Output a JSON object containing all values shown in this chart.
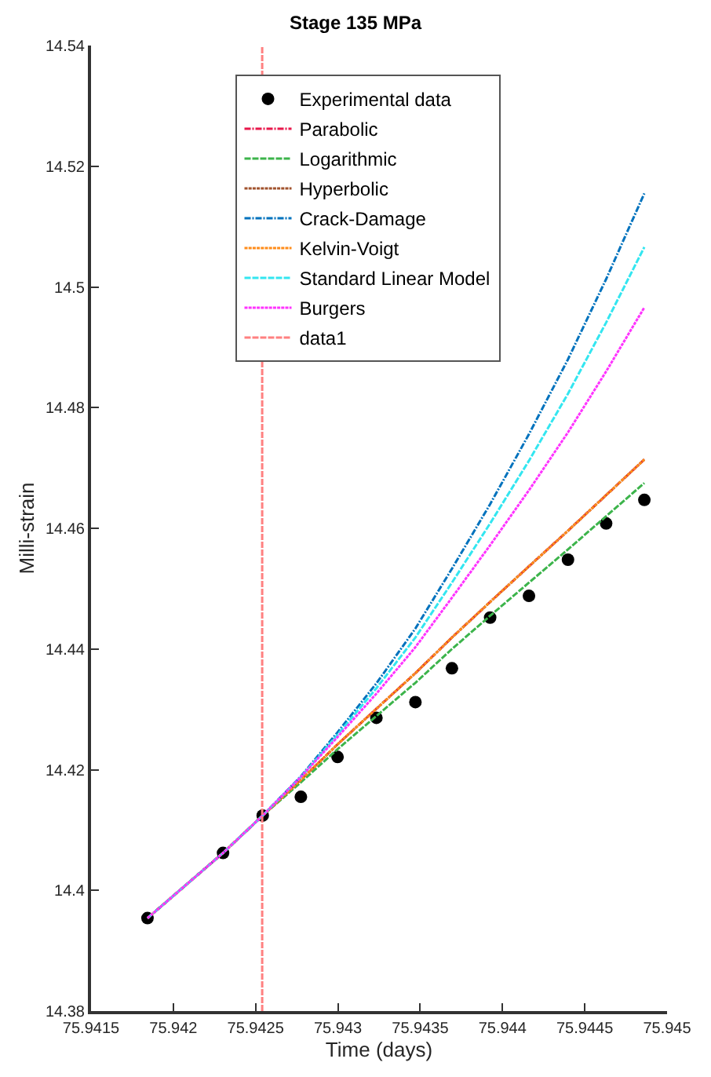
{
  "chart_data": {
    "type": "line",
    "title": "Stage 135 MPa",
    "xlabel": "Time (days)",
    "ylabel": "Milli-strain",
    "x": [
      75.941843,
      75.942302,
      75.942543,
      75.942775,
      75.942998,
      75.943234,
      75.943471,
      75.943693,
      75.943925,
      75.944161,
      75.944398,
      75.94463,
      75.944862
    ],
    "series": [
      {
        "name": "Experimental data",
        "type": "scatter",
        "marker": "circle",
        "color": "#000000",
        "values": [
          14.3954,
          14.4062,
          14.4124,
          14.4155,
          14.4221,
          14.4286,
          14.4312,
          14.4368,
          14.4452,
          14.4488,
          14.4548,
          14.4608,
          14.4647
        ]
      },
      {
        "name": "Parabolic",
        "color": "#e8174a",
        "line_style": "dashdot",
        "values": [
          14.3954,
          14.4062,
          14.4124,
          14.4183,
          14.4242,
          14.4301,
          14.436,
          14.4419,
          14.4478,
          14.4537,
          14.4596,
          14.4655,
          14.4714
        ]
      },
      {
        "name": "Logarithmic",
        "color": "#3cb44b",
        "line_style": "dashed",
        "values": [
          14.3954,
          14.4062,
          14.4124,
          14.4179,
          14.4234,
          14.4289,
          14.4344,
          14.44,
          14.4455,
          14.451,
          14.4565,
          14.462,
          14.4675
        ]
      },
      {
        "name": "Hyperbolic",
        "color": "#a0522d",
        "line_style": "dotted",
        "values": [
          14.3954,
          14.4062,
          14.4124,
          14.4183,
          14.4242,
          14.4301,
          14.436,
          14.4419,
          14.4478,
          14.4537,
          14.4596,
          14.4655,
          14.4714
        ]
      },
      {
        "name": "Crack-Damage",
        "color": "#0072bd",
        "line_style": "dashdot",
        "values": [
          14.3954,
          14.4062,
          14.4124,
          14.4189,
          14.4262,
          14.4343,
          14.4434,
          14.4533,
          14.464,
          14.4756,
          14.488,
          14.5013,
          14.5155
        ]
      },
      {
        "name": "Kelvin-Voigt",
        "color": "#ff8c1a",
        "line_style": "dotted",
        "values": [
          14.3954,
          14.4062,
          14.4124,
          14.4183,
          14.4242,
          14.4301,
          14.436,
          14.4419,
          14.4478,
          14.4537,
          14.4596,
          14.4655,
          14.4714
        ]
      },
      {
        "name": "Standard Linear Model",
        "color": "#33e6f0",
        "line_style": "dashed",
        "values": [
          14.3954,
          14.4062,
          14.4124,
          14.4188,
          14.4258,
          14.4335,
          14.4419,
          14.451,
          14.4608,
          14.4712,
          14.4823,
          14.4941,
          14.5066
        ]
      },
      {
        "name": "Burgers",
        "color": "#ff33ff",
        "line_style": "dotted",
        "values": [
          14.3954,
          14.4062,
          14.4124,
          14.4188,
          14.4254,
          14.4326,
          14.4403,
          14.4485,
          14.4572,
          14.4663,
          14.4759,
          14.486,
          14.4966
        ]
      },
      {
        "name": "data1",
        "color": "#ff8080",
        "line_style": "dashed",
        "x": [
          75.94254,
          75.94254
        ],
        "values": [
          14.38,
          14.54
        ]
      }
    ],
    "xlim": [
      75.9415,
      75.945
    ],
    "xticks": [
      75.9415,
      75.942,
      75.9425,
      75.943,
      75.9435,
      75.944,
      75.9445,
      75.945
    ],
    "ylim": [
      14.38,
      14.54
    ],
    "yticks": [
      14.38,
      14.4,
      14.42,
      14.44,
      14.46,
      14.48,
      14.5,
      14.52,
      14.54
    ],
    "grid": false,
    "legend": "top",
    "marker": "none"
  }
}
